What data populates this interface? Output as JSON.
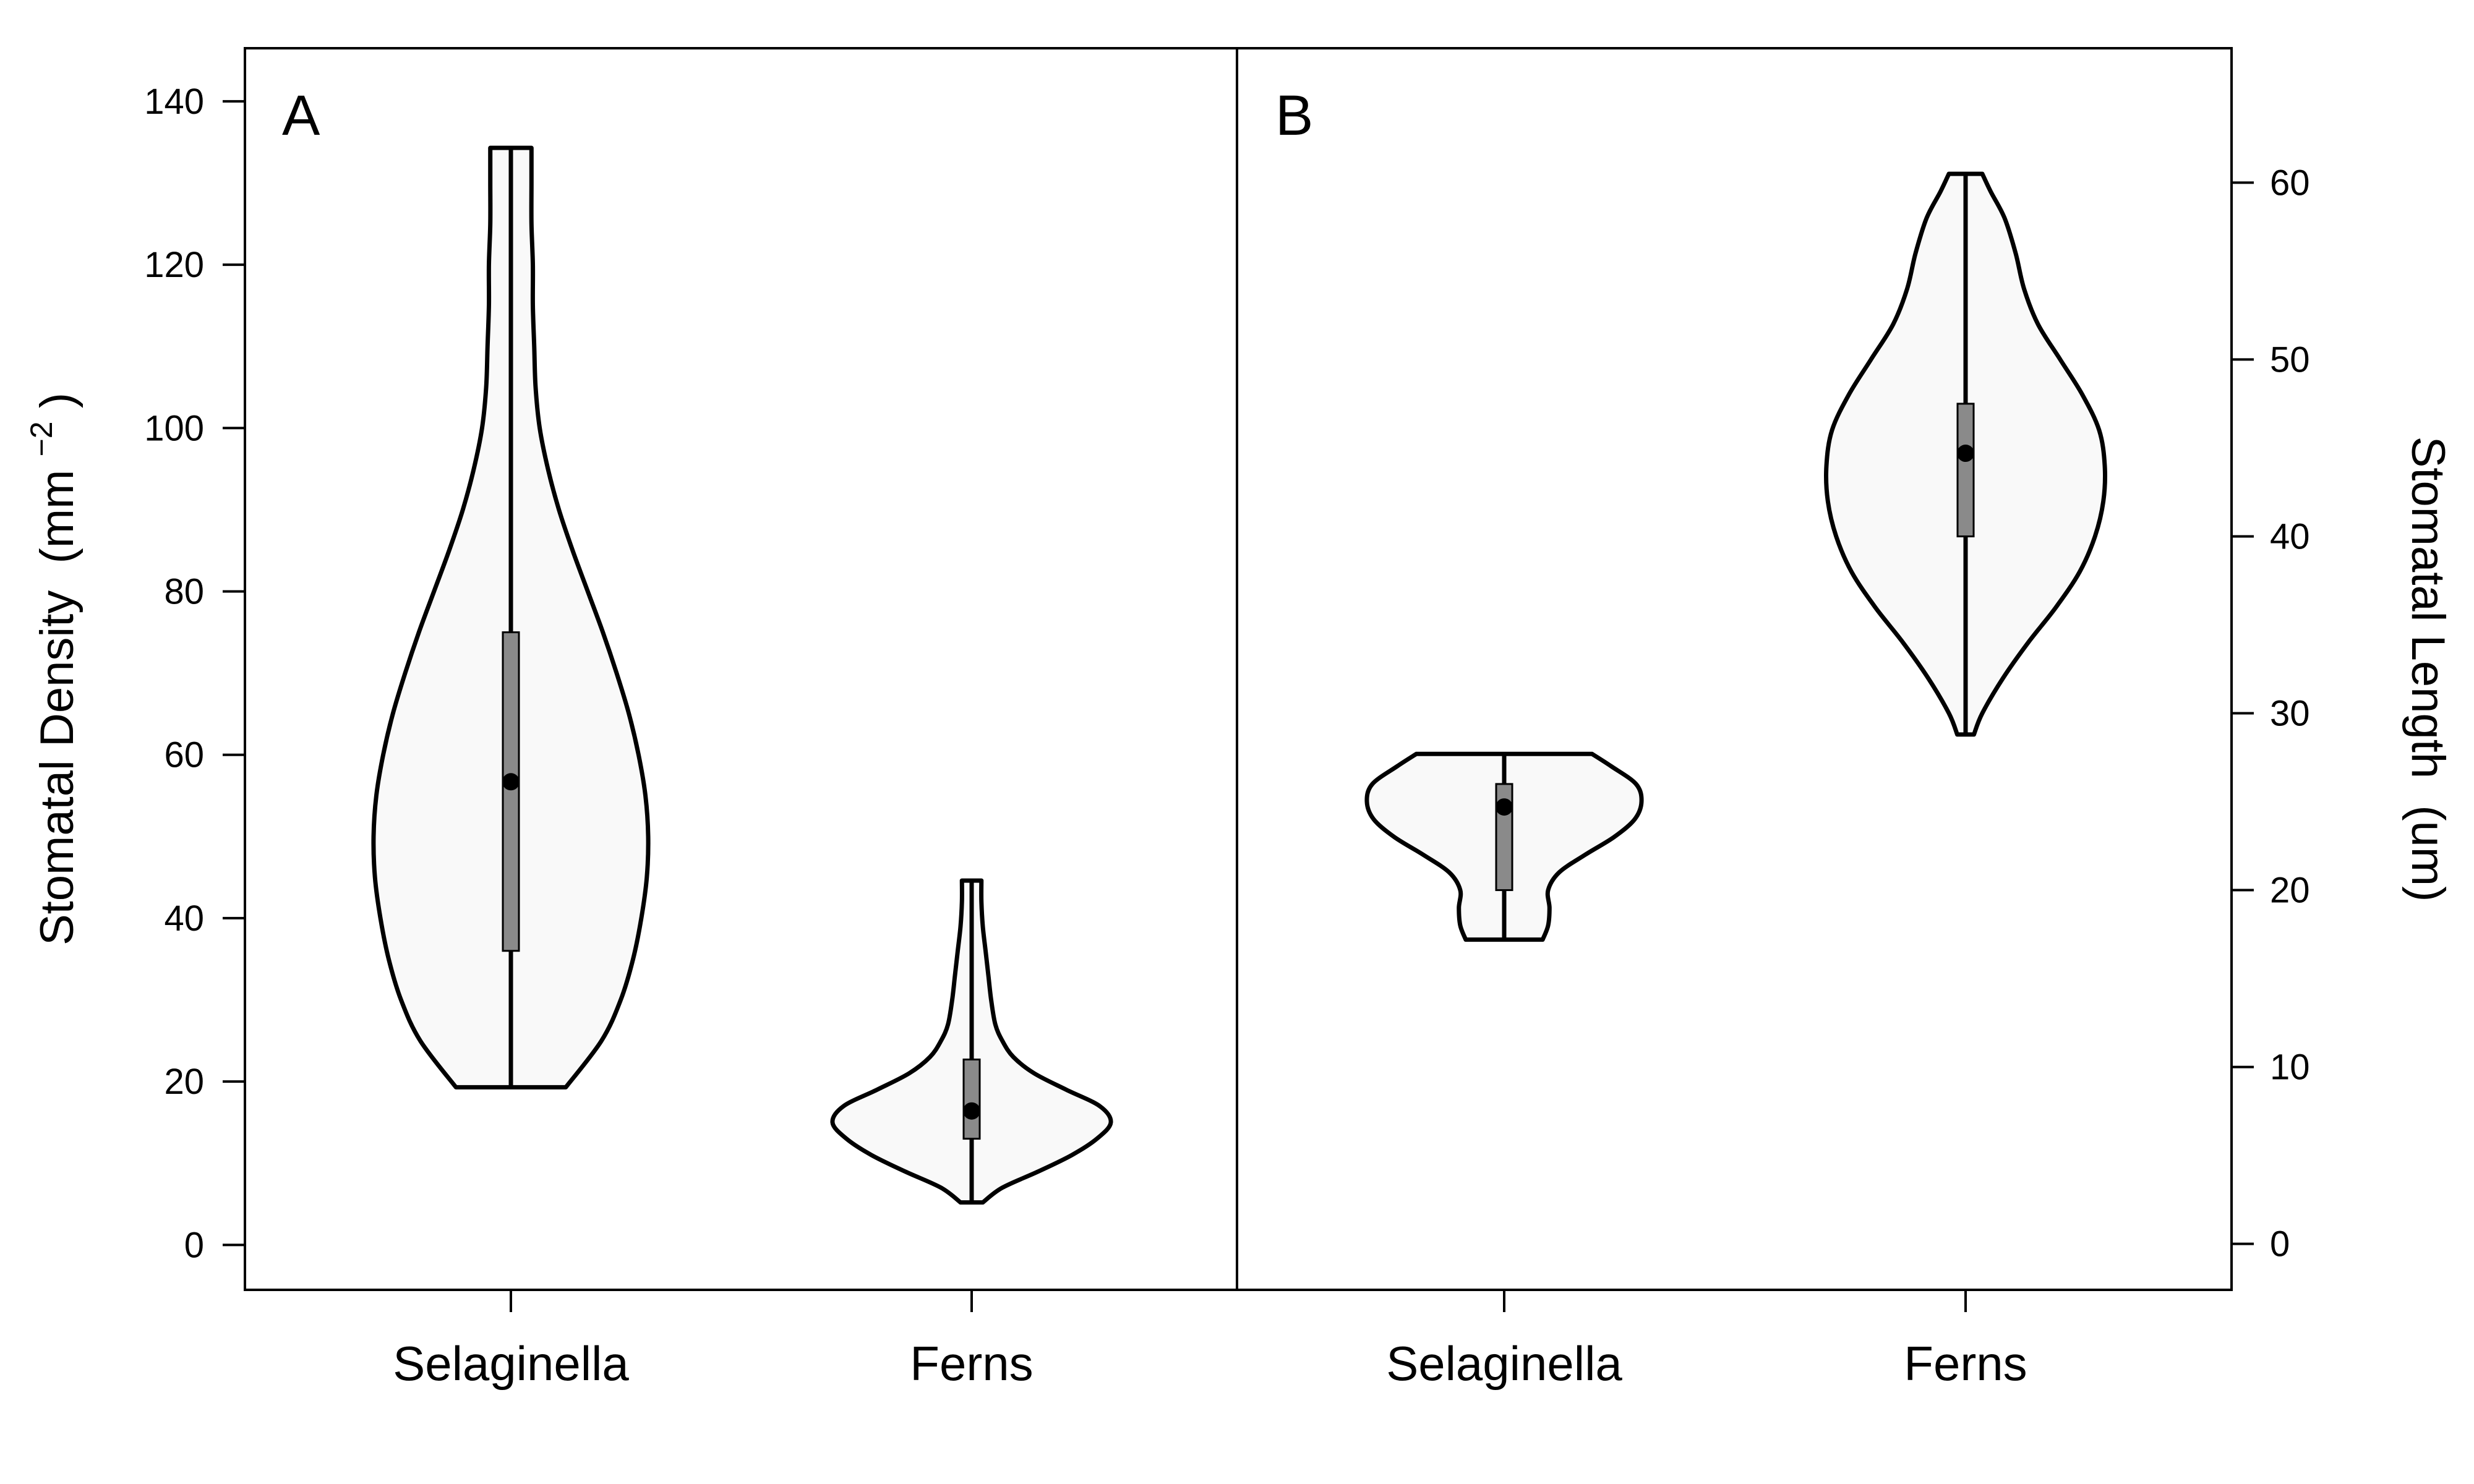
{
  "chart_data": [
    {
      "type": "violin",
      "panel": "A",
      "categories": [
        "Selaginella",
        "Ferns"
      ],
      "ylabel": "Stomatal Density",
      "ylabel_unit": "(mm",
      "ylabel_unit_exponent": "−2",
      "ylabel_unit_close": ")",
      "yaxis_side": "left",
      "ylim": [
        -5.5,
        146.5
      ],
      "yticks": [
        0,
        20,
        40,
        60,
        80,
        100,
        120,
        140
      ],
      "violins": [
        {
          "name": "Selaginella",
          "min": 19.3,
          "q1": 36,
          "median": 56.7,
          "q3": 75,
          "max": 134.3,
          "density_profile": [
            [
              19.3,
              0.4
            ],
            [
              25,
              0.66
            ],
            [
              30,
              0.8
            ],
            [
              35,
              0.89
            ],
            [
              40,
              0.95
            ],
            [
              45,
              0.99
            ],
            [
              50,
              1.0
            ],
            [
              55,
              0.98
            ],
            [
              60,
              0.93
            ],
            [
              65,
              0.86
            ],
            [
              70,
              0.77
            ],
            [
              75,
              0.67
            ],
            [
              80,
              0.56
            ],
            [
              85,
              0.45
            ],
            [
              90,
              0.35
            ],
            [
              95,
              0.27
            ],
            [
              100,
              0.21
            ],
            [
              105,
              0.18
            ],
            [
              110,
              0.17
            ],
            [
              115,
              0.16
            ],
            [
              120,
              0.16
            ],
            [
              125,
              0.15
            ],
            [
              130,
              0.15
            ],
            [
              134.3,
              0.15
            ]
          ]
        },
        {
          "name": "Ferns",
          "min": 5.2,
          "q1": 13,
          "median": 16.4,
          "q3": 22.7,
          "max": 44.6,
          "density_profile": [
            [
              5.2,
              0.08
            ],
            [
              7,
              0.22
            ],
            [
              9,
              0.48
            ],
            [
              11,
              0.72
            ],
            [
              13,
              0.9
            ],
            [
              15,
              1.0
            ],
            [
              17,
              0.92
            ],
            [
              19,
              0.68
            ],
            [
              21,
              0.45
            ],
            [
              23,
              0.3
            ],
            [
              25,
              0.22
            ],
            [
              27,
              0.17
            ],
            [
              30,
              0.14
            ],
            [
              33,
              0.12
            ],
            [
              36,
              0.1
            ],
            [
              39,
              0.08
            ],
            [
              42,
              0.07
            ],
            [
              44.6,
              0.07
            ]
          ]
        }
      ]
    },
    {
      "type": "violin",
      "panel": "B",
      "categories": [
        "Selaginella",
        "Ferns"
      ],
      "ylabel": "Stomatal Length",
      "ylabel_unit": "(um)",
      "yaxis_side": "right",
      "ylim": [
        -2.6,
        67.6
      ],
      "yticks": [
        0,
        10,
        20,
        30,
        40,
        50,
        60
      ],
      "violins": [
        {
          "name": "Selaginella",
          "min": 17.2,
          "q1": 20,
          "median": 24.7,
          "q3": 26,
          "max": 27.7,
          "density_profile": [
            [
              17.2,
              0.28
            ],
            [
              18,
              0.32
            ],
            [
              19,
              0.33
            ],
            [
              20,
              0.32
            ],
            [
              21,
              0.4
            ],
            [
              22,
              0.59
            ],
            [
              23,
              0.8
            ],
            [
              24,
              0.95
            ],
            [
              25,
              1.0
            ],
            [
              26,
              0.96
            ],
            [
              27,
              0.78
            ],
            [
              27.7,
              0.64
            ]
          ]
        },
        {
          "name": "Ferns",
          "min": 28.8,
          "q1": 40,
          "median": 44.7,
          "q3": 47.5,
          "max": 60.5,
          "density_profile": [
            [
              28.8,
              0.06
            ],
            [
              30,
              0.12
            ],
            [
              32,
              0.27
            ],
            [
              34,
              0.45
            ],
            [
              36,
              0.65
            ],
            [
              38,
              0.82
            ],
            [
              40,
              0.93
            ],
            [
              42,
              0.99
            ],
            [
              44,
              1.0
            ],
            [
              46,
              0.96
            ],
            [
              48,
              0.84
            ],
            [
              50,
              0.68
            ],
            [
              52,
              0.52
            ],
            [
              54,
              0.42
            ],
            [
              56,
              0.36
            ],
            [
              58,
              0.28
            ],
            [
              59.5,
              0.18
            ],
            [
              60.5,
              0.12
            ]
          ]
        }
      ]
    }
  ]
}
